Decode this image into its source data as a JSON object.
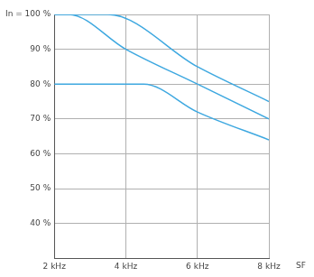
{
  "chart_data": {
    "type": "line",
    "x_label": "SF",
    "xlim": [
      2,
      8
    ],
    "xticks": [
      {
        "value": 2,
        "label": "2 kHz"
      },
      {
        "value": 4,
        "label": "4 kHz"
      },
      {
        "value": 6,
        "label": "6 kHz"
      },
      {
        "value": 8,
        "label": "8 kHz"
      }
    ],
    "ylim": [
      30,
      100
    ],
    "yticks": [
      {
        "value": 40,
        "label": "40 %"
      },
      {
        "value": 50,
        "label": "50 %"
      },
      {
        "value": 60,
        "label": "60 %"
      },
      {
        "value": 70,
        "label": "70 %"
      },
      {
        "value": 80,
        "label": "80 %"
      },
      {
        "value": 90,
        "label": "90 %"
      },
      {
        "value": 100,
        "label": "In = 100 %"
      }
    ],
    "grid": true,
    "series": [
      {
        "color": "#3ea8e0",
        "x": [
          2,
          3.5,
          6,
          8
        ],
        "values": [
          100,
          100,
          85,
          75
        ]
      },
      {
        "color": "#3ea8e0",
        "x": [
          2,
          2.4,
          4,
          6,
          8
        ],
        "values": [
          100,
          100,
          90,
          80,
          70
        ]
      },
      {
        "color": "#3ea8e0",
        "x": [
          2,
          4.5,
          6,
          8
        ],
        "values": [
          80,
          80,
          72,
          64
        ]
      }
    ]
  }
}
